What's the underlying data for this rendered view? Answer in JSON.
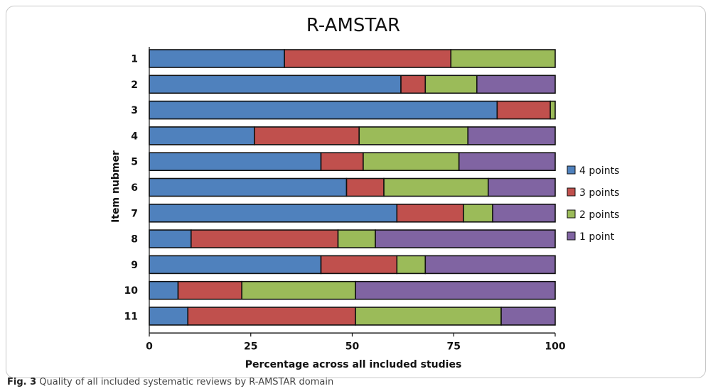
{
  "figure": {
    "caption_label": "Fig. 3",
    "caption_text": "Quality of all included systematic reviews by R-AMSTAR domain"
  },
  "chart_data": {
    "type": "bar",
    "orientation": "horizontal",
    "stacked": true,
    "title": "R-AMSTAR",
    "xlabel": "Percentage across all included studies",
    "ylabel": "Item nubmer",
    "xlim": [
      0,
      100
    ],
    "xticks": [
      "0",
      "25",
      "50",
      "75",
      "100"
    ],
    "grid": false,
    "legend_position": "right",
    "categories": [
      "1",
      "2",
      "3",
      "4",
      "5",
      "6",
      "7",
      "8",
      "9",
      "10",
      "11"
    ],
    "series": [
      {
        "name": "4 points",
        "color": "#4f81bd",
        "values": [
          33.3,
          62.0,
          85.7,
          25.9,
          42.3,
          48.6,
          61.0,
          10.3,
          42.3,
          7.1,
          9.5
        ]
      },
      {
        "name": "3 points",
        "color": "#c0504d",
        "values": [
          41.0,
          6.0,
          13.1,
          25.8,
          10.4,
          9.2,
          16.4,
          36.2,
          18.7,
          15.7,
          41.3
        ]
      },
      {
        "name": "2 points",
        "color": "#9bbb59",
        "values": [
          25.7,
          12.7,
          1.2,
          26.8,
          23.6,
          25.7,
          7.2,
          9.2,
          7.0,
          28.0,
          35.9
        ]
      },
      {
        "name": "1 point",
        "color": "#8064a2",
        "values": [
          0,
          19.3,
          0,
          21.5,
          23.7,
          16.5,
          15.4,
          44.3,
          32.0,
          49.2,
          13.3
        ]
      }
    ]
  }
}
